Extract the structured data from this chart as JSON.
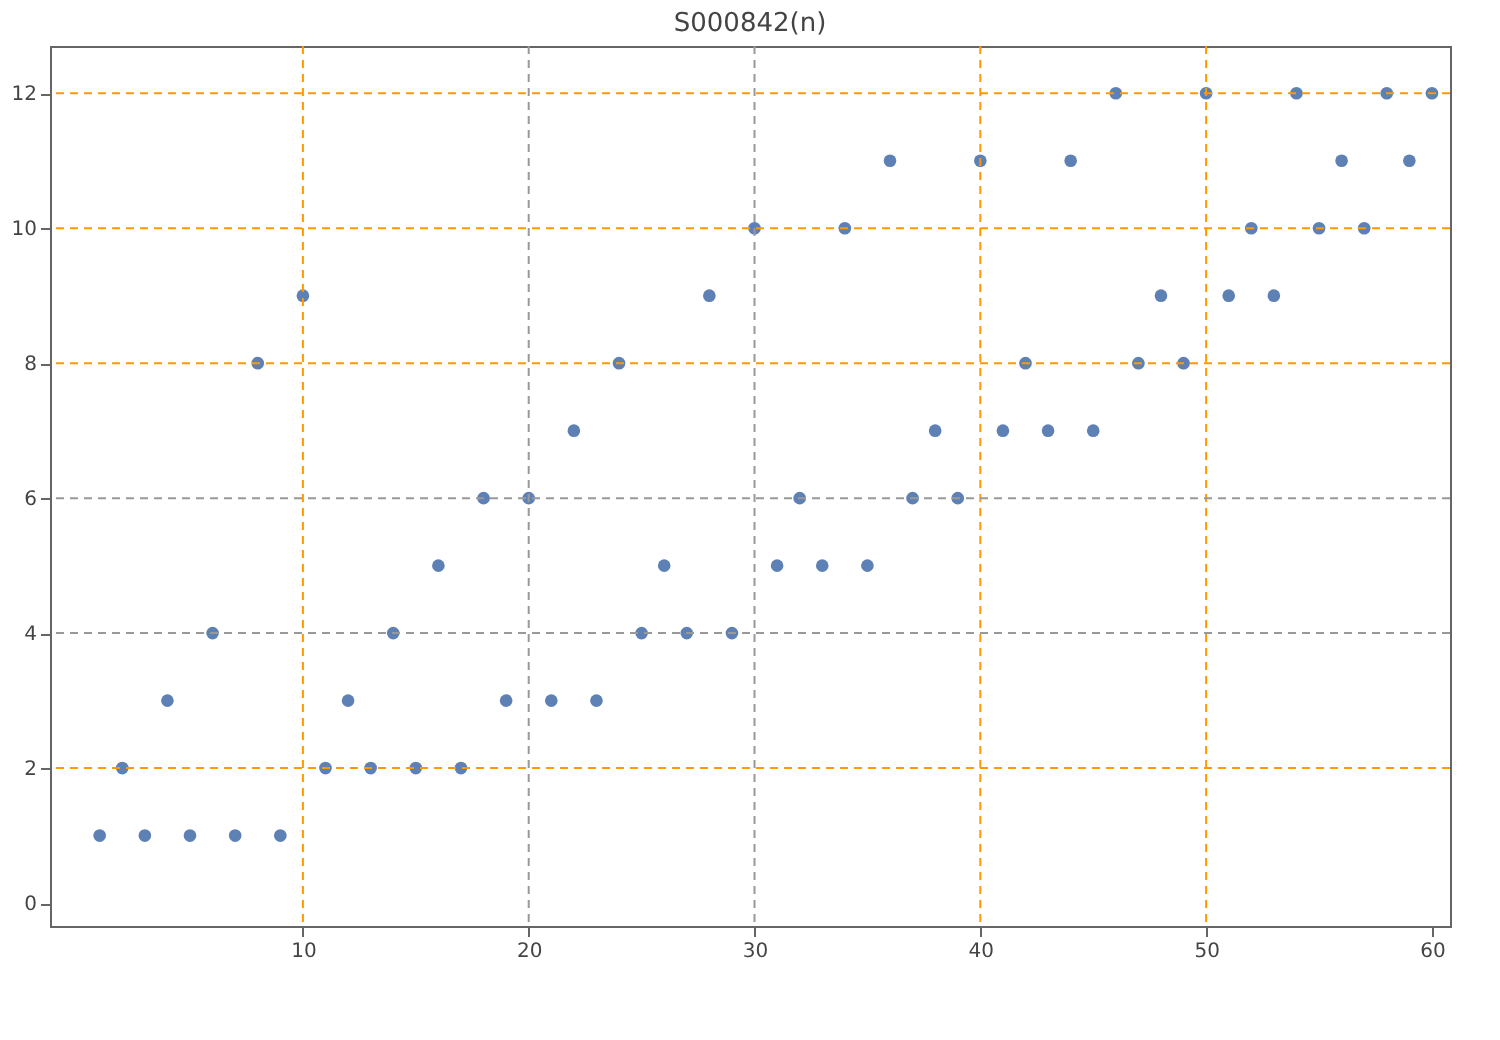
{
  "chart_data": {
    "type": "scatter",
    "title": "S000842(n)",
    "x": [
      1,
      2,
      3,
      4,
      5,
      6,
      7,
      8,
      9,
      10,
      11,
      12,
      13,
      14,
      15,
      16,
      17,
      18,
      19,
      20,
      21,
      22,
      23,
      24,
      25,
      26,
      27,
      28,
      29,
      30,
      31,
      32,
      33,
      34,
      35,
      36,
      37,
      38,
      39,
      40,
      41,
      42,
      43,
      44,
      45,
      46,
      47,
      48,
      49,
      50,
      51,
      52,
      53,
      54,
      55,
      56,
      57,
      58,
      59,
      60
    ],
    "values": [
      1,
      2,
      1,
      3,
      1,
      4,
      1,
      8,
      1,
      9,
      2,
      3,
      2,
      4,
      2,
      5,
      2,
      6,
      3,
      6,
      3,
      7,
      3,
      8,
      4,
      5,
      4,
      9,
      4,
      10,
      5,
      6,
      5,
      10,
      5,
      11,
      6,
      7,
      6,
      11,
      7,
      8,
      7,
      11,
      7,
      12,
      8,
      9,
      8,
      12,
      9,
      10,
      9,
      12,
      10,
      11,
      10,
      12,
      11,
      12
    ],
    "color": "#5e81b5",
    "marker": "circle",
    "grid": false,
    "xlim": [
      -1.2,
      60.8
    ],
    "xticks": [
      10,
      20,
      30,
      40,
      50,
      60
    ],
    "ylim": [
      -0.34,
      12.7
    ],
    "yticks": [
      0,
      2,
      4,
      6,
      8,
      10,
      12
    ],
    "ref_lines": [
      {
        "axis": "x",
        "value": 10,
        "color": "#ff9900",
        "line_style": "dashed"
      },
      {
        "axis": "x",
        "value": 20,
        "color": "#999999",
        "line_style": "dashed"
      },
      {
        "axis": "x",
        "value": 30,
        "color": "#999999",
        "line_style": "dashed"
      },
      {
        "axis": "x",
        "value": 40,
        "color": "#ff9900",
        "line_style": "dashed"
      },
      {
        "axis": "x",
        "value": 50,
        "color": "#ff9900",
        "line_style": "dashed"
      },
      {
        "axis": "y",
        "value": 2,
        "color": "#ff9900",
        "line_style": "dashed"
      },
      {
        "axis": "y",
        "value": 4,
        "color": "#999999",
        "line_style": "dashed"
      },
      {
        "axis": "y",
        "value": 6,
        "color": "#999999",
        "line_style": "dashed"
      },
      {
        "axis": "y",
        "value": 8,
        "color": "#ff9900",
        "line_style": "dashed"
      },
      {
        "axis": "y",
        "value": 10,
        "color": "#ff9900",
        "line_style": "dashed"
      },
      {
        "axis": "y",
        "value": 12,
        "color": "#ff9900",
        "line_style": "dashed"
      }
    ]
  }
}
